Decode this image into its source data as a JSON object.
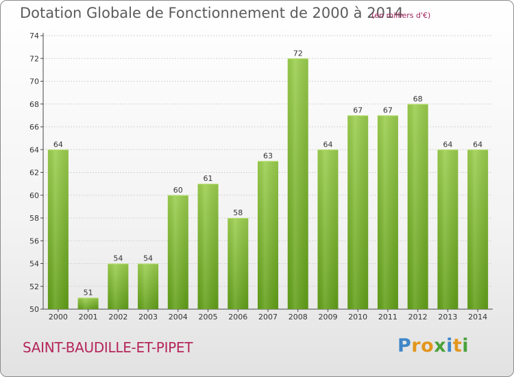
{
  "header": {
    "title": "Dotation Globale de Fonctionnement de 2000 à 2014",
    "unit": "(en milliers d'€)"
  },
  "footer": {
    "commune": "SAINT-BAUDILLE-ET-PIPET",
    "logo": "Proxiti"
  },
  "colors": {
    "bar_top": "#9ccf4f",
    "bar_bottom": "#62a019",
    "bar_highlight": "#b8e06e",
    "grid": "#d2d2d2",
    "commune_text": "#b4265a",
    "unit_text": "#a0205a"
  },
  "chart_data": {
    "type": "bar",
    "title": "Dotation Globale de Fonctionnement de 2000 à 2014",
    "subtitle": "(en milliers d'€)",
    "xlabel": "",
    "ylabel": "",
    "categories": [
      "2000",
      "2001",
      "2002",
      "2003",
      "2004",
      "2005",
      "2006",
      "2007",
      "2008",
      "2009",
      "2010",
      "2011",
      "2012",
      "2013",
      "2014"
    ],
    "values": [
      64,
      51,
      54,
      54,
      60,
      61,
      58,
      63,
      72,
      64,
      67,
      67,
      68,
      64,
      64
    ],
    "ylim": [
      50,
      74
    ],
    "yticks": [
      50,
      52,
      54,
      56,
      58,
      60,
      62,
      64,
      66,
      68,
      70,
      72,
      74
    ],
    "grid": true,
    "data_labels": true
  }
}
